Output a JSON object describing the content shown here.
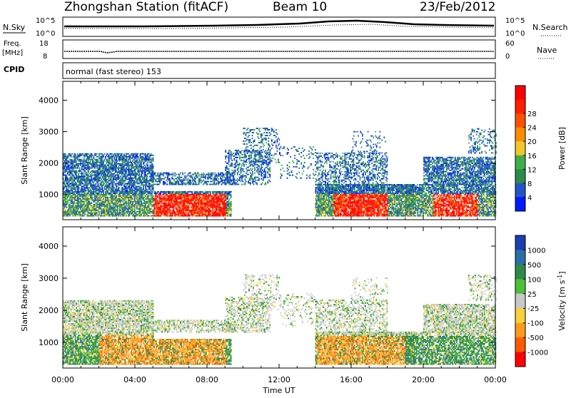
{
  "header": {
    "station": "Zhongshan Station (fitACF)",
    "beam": "Beam 10",
    "date": "23/Feb/2012"
  },
  "strip_top": {
    "left_label": "N.Sky",
    "right_label": "N.Search",
    "left_ticks": [
      "10^5",
      "10^0"
    ],
    "right_ticks": [
      "10^5",
      "10^0"
    ]
  },
  "strip_mid": {
    "left_label_line1": "Freq.",
    "left_label_line2": "[MHz]",
    "right_label": "Nave",
    "left_ticks": [
      "18",
      "8"
    ],
    "right_ticks": [
      "60",
      "0"
    ]
  },
  "cpid": {
    "label": "CPID",
    "value": "normal (fast stereo) 153"
  },
  "chart_data": [
    {
      "type": "heatmap",
      "name": "power",
      "ylabel": "Slant Range [km]",
      "ylim": [
        200,
        4600
      ],
      "yticks": [
        "1000",
        "2000",
        "3000",
        "4000"
      ],
      "ytick_values": [
        1000,
        2000,
        3000,
        4000
      ],
      "xlim": [
        0,
        24
      ],
      "colorbar": {
        "label": "Power [dB]",
        "ticks": [
          "4",
          "8",
          "12",
          "16",
          "20",
          "24",
          "28"
        ],
        "colors": [
          "#0018ff",
          "#2255c8",
          "#2b8c4a",
          "#3fae4a",
          "#f0c82a",
          "#ff8c00",
          "#ff5000",
          "#ff1e00",
          "#ff0000"
        ],
        "position": "right"
      }
    },
    {
      "type": "heatmap",
      "name": "velocity",
      "ylabel": "Slant Range [km]",
      "ylim": [
        200,
        4600
      ],
      "yticks": [
        "1000",
        "2000",
        "3000",
        "4000"
      ],
      "ytick_values": [
        1000,
        2000,
        3000,
        4000
      ],
      "xlim": [
        0,
        24
      ],
      "colorbar": {
        "label": "Velocity [m s",
        "label_sup": "-1",
        "label_end": "]",
        "ticks": [
          "1000",
          "500",
          "100",
          "25",
          "-25",
          "-100",
          "-500",
          "-1000"
        ],
        "colors": [
          "#1c3fb0",
          "#2b6ea8",
          "#2e8a4a",
          "#4cc03a",
          "#c8c8c8",
          "#f5d23a",
          "#ff9a1e",
          "#ff5a00",
          "#ff0000"
        ],
        "position": "right"
      }
    }
  ],
  "xaxis": {
    "label": "Time UT",
    "ticks": [
      "00:00",
      "04:00",
      "08:00",
      "12:00",
      "16:00",
      "20:00",
      "00:00"
    ]
  }
}
